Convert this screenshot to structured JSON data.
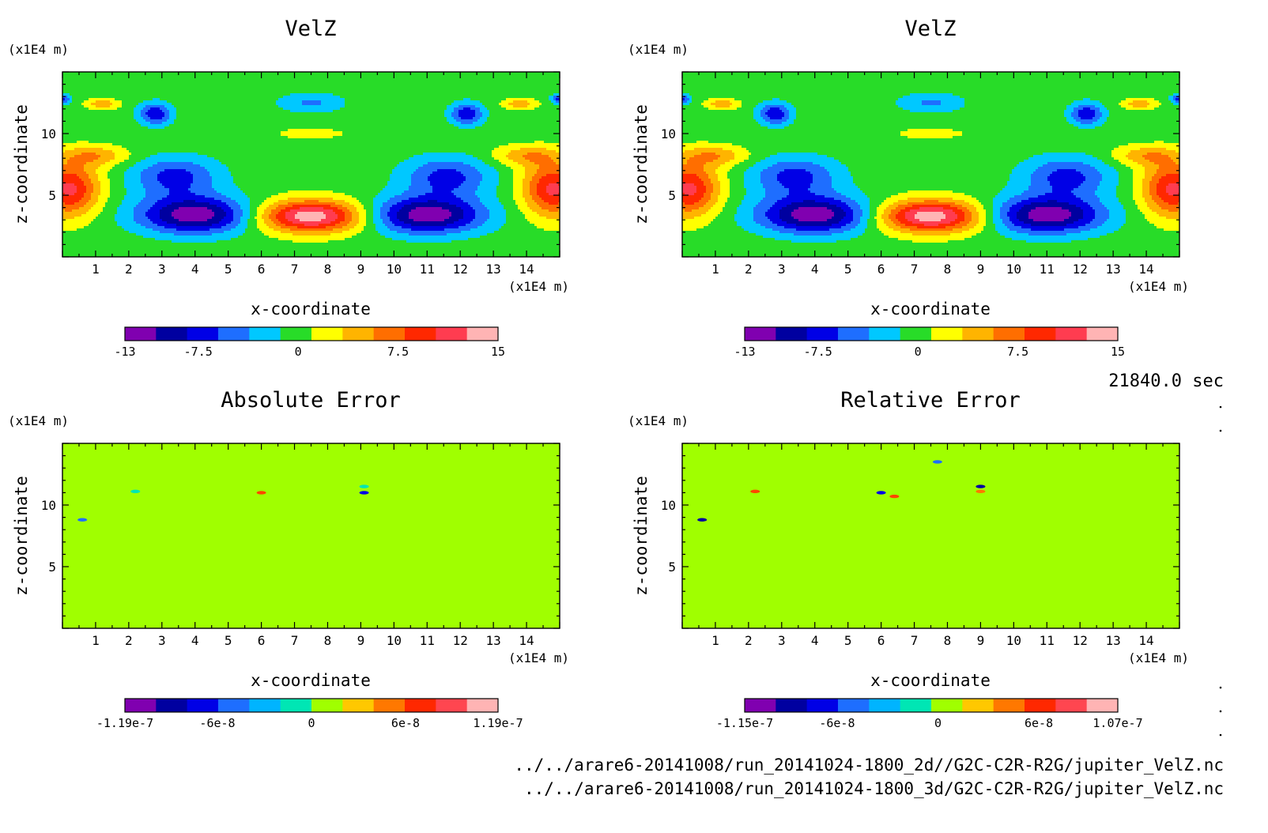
{
  "chart_data": [
    {
      "type": "heatmap",
      "title": "VelZ",
      "xlabel": "x-coordinate",
      "ylabel": "z-coordinate",
      "x_unit": "(x1E4 m)",
      "y_unit": "(x1E4 m)",
      "xlim": [
        0,
        15
      ],
      "ylim": [
        0,
        15
      ],
      "x_ticks": [
        1,
        2,
        3,
        4,
        5,
        6,
        7,
        8,
        9,
        10,
        11,
        12,
        13,
        14
      ],
      "y_ticks": [
        5,
        10
      ],
      "colorbar": {
        "min": -13,
        "max": 15,
        "step": 2.5,
        "tick_values": [
          -13,
          -7.5,
          0,
          7.5,
          15
        ],
        "tick_labels": [
          "-13",
          "-7.5",
          "0",
          "7.5",
          "15"
        ],
        "colors": [
          "#8000b0",
          "#0000a0",
          "#0000e6",
          "#1e6eff",
          "#00c8ff",
          "#28dc28",
          "#ffff00",
          "#ffb400",
          "#ff6e00",
          "#ff2800",
          "#ff3c50",
          "#ffb4b4"
        ]
      },
      "field": {
        "kind": "velocity",
        "features": [
          {
            "x": 4.0,
            "z": 3.4,
            "sx": 1.7,
            "sz": 1.5,
            "amp": -12.5
          },
          {
            "x": 11.0,
            "z": 3.4,
            "sx": 1.7,
            "sz": 1.5,
            "amp": -12.5
          },
          {
            "x": 3.4,
            "z": 6.5,
            "sx": 1.3,
            "sz": 1.6,
            "amp": -7
          },
          {
            "x": 11.6,
            "z": 6.5,
            "sx": 1.3,
            "sz": 1.6,
            "amp": -7
          },
          {
            "x": 7.5,
            "z": 3.3,
            "sx": 1.6,
            "sz": 1.3,
            "amp": 14.5
          },
          {
            "x": 0.2,
            "z": 5.5,
            "sx": 0.9,
            "sz": 2.2,
            "amp": 11
          },
          {
            "x": 14.8,
            "z": 5.5,
            "sx": 0.9,
            "sz": 2.2,
            "amp": 11
          },
          {
            "x": 1.0,
            "z": 8.2,
            "sx": 1.0,
            "sz": 0.8,
            "amp": 5
          },
          {
            "x": 14.0,
            "z": 8.2,
            "sx": 1.0,
            "sz": 0.8,
            "amp": 5
          },
          {
            "x": 2.8,
            "z": 11.6,
            "sx": 0.5,
            "sz": 0.9,
            "amp": -8
          },
          {
            "x": 12.2,
            "z": 11.6,
            "sx": 0.5,
            "sz": 0.9,
            "amp": -8
          },
          {
            "x": 1.2,
            "z": 12.4,
            "sx": 0.5,
            "sz": 0.4,
            "amp": 5
          },
          {
            "x": 13.8,
            "z": 12.4,
            "sx": 0.5,
            "sz": 0.4,
            "amp": 5
          },
          {
            "x": 7.5,
            "z": 10.0,
            "sx": 0.9,
            "sz": 0.4,
            "amp": 3
          },
          {
            "x": 7.5,
            "z": 12.5,
            "sx": 1.0,
            "sz": 0.8,
            "amp": -4
          },
          {
            "x": 0.0,
            "z": 12.8,
            "sx": 0.25,
            "sz": 0.4,
            "amp": -7
          },
          {
            "x": 15.0,
            "z": 12.8,
            "sx": 0.25,
            "sz": 0.4,
            "amp": -7
          }
        ]
      }
    },
    {
      "type": "heatmap",
      "title": "VelZ",
      "xlabel": "x-coordinate",
      "ylabel": "z-coordinate",
      "x_unit": "(x1E4 m)",
      "y_unit": "(x1E4 m)",
      "xlim": [
        0,
        15
      ],
      "ylim": [
        0,
        15
      ],
      "x_ticks": [
        1,
        2,
        3,
        4,
        5,
        6,
        7,
        8,
        9,
        10,
        11,
        12,
        13,
        14
      ],
      "y_ticks": [
        5,
        10
      ],
      "colorbar": {
        "min": -13,
        "max": 15,
        "step": 2.5,
        "tick_values": [
          -13,
          -7.5,
          0,
          7.5,
          15
        ],
        "tick_labels": [
          "-13",
          "-7.5",
          "0",
          "7.5",
          "15"
        ],
        "colors": [
          "#8000b0",
          "#0000a0",
          "#0000e6",
          "#1e6eff",
          "#00c8ff",
          "#28dc28",
          "#ffff00",
          "#ffb400",
          "#ff6e00",
          "#ff2800",
          "#ff3c50",
          "#ffb4b4"
        ]
      },
      "field": {
        "kind": "velocity",
        "features": [
          {
            "x": 4.0,
            "z": 3.4,
            "sx": 1.7,
            "sz": 1.5,
            "amp": -12.5
          },
          {
            "x": 11.0,
            "z": 3.4,
            "sx": 1.7,
            "sz": 1.5,
            "amp": -12.5
          },
          {
            "x": 3.4,
            "z": 6.5,
            "sx": 1.3,
            "sz": 1.6,
            "amp": -7
          },
          {
            "x": 11.6,
            "z": 6.5,
            "sx": 1.3,
            "sz": 1.6,
            "amp": -7
          },
          {
            "x": 7.5,
            "z": 3.3,
            "sx": 1.6,
            "sz": 1.3,
            "amp": 14.5
          },
          {
            "x": 0.2,
            "z": 5.5,
            "sx": 0.9,
            "sz": 2.2,
            "amp": 11
          },
          {
            "x": 14.8,
            "z": 5.5,
            "sx": 0.9,
            "sz": 2.2,
            "amp": 11
          },
          {
            "x": 1.0,
            "z": 8.2,
            "sx": 1.0,
            "sz": 0.8,
            "amp": 5
          },
          {
            "x": 14.0,
            "z": 8.2,
            "sx": 1.0,
            "sz": 0.8,
            "amp": 5
          },
          {
            "x": 2.8,
            "z": 11.6,
            "sx": 0.5,
            "sz": 0.9,
            "amp": -8
          },
          {
            "x": 12.2,
            "z": 11.6,
            "sx": 0.5,
            "sz": 0.9,
            "amp": -8
          },
          {
            "x": 1.2,
            "z": 12.4,
            "sx": 0.5,
            "sz": 0.4,
            "amp": 5
          },
          {
            "x": 13.8,
            "z": 12.4,
            "sx": 0.5,
            "sz": 0.4,
            "amp": 5
          },
          {
            "x": 7.5,
            "z": 10.0,
            "sx": 0.9,
            "sz": 0.4,
            "amp": 3
          },
          {
            "x": 7.5,
            "z": 12.5,
            "sx": 1.0,
            "sz": 0.8,
            "amp": -4
          },
          {
            "x": 0.0,
            "z": 12.8,
            "sx": 0.25,
            "sz": 0.4,
            "amp": -7
          },
          {
            "x": 15.0,
            "z": 12.8,
            "sx": 0.25,
            "sz": 0.4,
            "amp": -7
          }
        ]
      }
    },
    {
      "type": "heatmap",
      "title": "Absolute Error",
      "xlabel": "x-coordinate",
      "ylabel": "z-coordinate",
      "x_unit": "(x1E4 m)",
      "y_unit": "(x1E4 m)",
      "xlim": [
        0,
        15
      ],
      "ylim": [
        0,
        15
      ],
      "x_ticks": [
        1,
        2,
        3,
        4,
        5,
        6,
        7,
        8,
        9,
        10,
        11,
        12,
        13,
        14
      ],
      "y_ticks": [
        5,
        10
      ],
      "colorbar": {
        "min": -1.19e-07,
        "max": 1.19e-07,
        "step": 2e-08,
        "tick_values": [
          -1.19e-07,
          -6e-08,
          0,
          6e-08,
          1.19e-07
        ],
        "tick_labels": [
          "-1.19e-7",
          "-6e-8",
          "0",
          "6e-8",
          "1.19e-7"
        ],
        "colors": [
          "#8000b0",
          "#0000a0",
          "#0000e6",
          "#1e6eff",
          "#00b4ff",
          "#00e6b4",
          "#a0ff00",
          "#ffc800",
          "#ff7800",
          "#ff2800",
          "#ff4650",
          "#ffb4b4"
        ]
      },
      "field": {
        "kind": "error",
        "background": "#a0ff00",
        "blips": [
          {
            "x": 0.6,
            "z": 8.8,
            "color": "#1e6eff"
          },
          {
            "x": 2.2,
            "z": 11.1,
            "color": "#00e6b4"
          },
          {
            "x": 6.0,
            "z": 11.0,
            "color": "#ff4600"
          },
          {
            "x": 9.1,
            "z": 11.5,
            "color": "#00e6b4"
          },
          {
            "x": 9.1,
            "z": 11.0,
            "color": "#0000e6"
          }
        ]
      }
    },
    {
      "type": "heatmap",
      "title": "Relative Error",
      "xlabel": "x-coordinate",
      "ylabel": "z-coordinate",
      "x_unit": "(x1E4 m)",
      "y_unit": "(x1E4 m)",
      "xlim": [
        0,
        15
      ],
      "ylim": [
        0,
        15
      ],
      "x_ticks": [
        1,
        2,
        3,
        4,
        5,
        6,
        7,
        8,
        9,
        10,
        11,
        12,
        13,
        14
      ],
      "y_ticks": [
        5,
        10
      ],
      "colorbar": {
        "min": -1.15e-07,
        "max": 1.07e-07,
        "step": 2e-08,
        "tick_values": [
          -1.15e-07,
          -6e-08,
          0,
          6e-08,
          1.07e-07
        ],
        "tick_labels": [
          "-1.15e-7",
          "-6e-8",
          "0",
          "6e-8",
          "1.07e-7"
        ],
        "colors": [
          "#8000b0",
          "#0000a0",
          "#0000e6",
          "#1e6eff",
          "#00b4ff",
          "#00e6b4",
          "#a0ff00",
          "#ffc800",
          "#ff7800",
          "#ff2800",
          "#ff4650",
          "#ffb4b4"
        ]
      },
      "field": {
        "kind": "error",
        "background": "#a0ff00",
        "blips": [
          {
            "x": 0.6,
            "z": 8.8,
            "color": "#0000a0"
          },
          {
            "x": 2.2,
            "z": 11.1,
            "color": "#ff4600"
          },
          {
            "x": 6.0,
            "z": 11.0,
            "color": "#0000e6"
          },
          {
            "x": 6.4,
            "z": 10.7,
            "color": "#ff4600"
          },
          {
            "x": 7.7,
            "z": 13.5,
            "color": "#1e6eff"
          },
          {
            "x": 9.0,
            "z": 11.5,
            "color": "#0000a0"
          },
          {
            "x": 9.0,
            "z": 11.1,
            "color": "#ff7800"
          }
        ]
      }
    }
  ],
  "timestamp": "21840.0 sec",
  "footer_lines": [
    "../../arare6-20141008/run_20141024-1800_2d//G2C-C2R-R2G/jupiter_VelZ.nc",
    "../../arare6-20141008/run_20141024-1800_3d/G2C-C2R-R2G/jupiter_VelZ.nc"
  ]
}
